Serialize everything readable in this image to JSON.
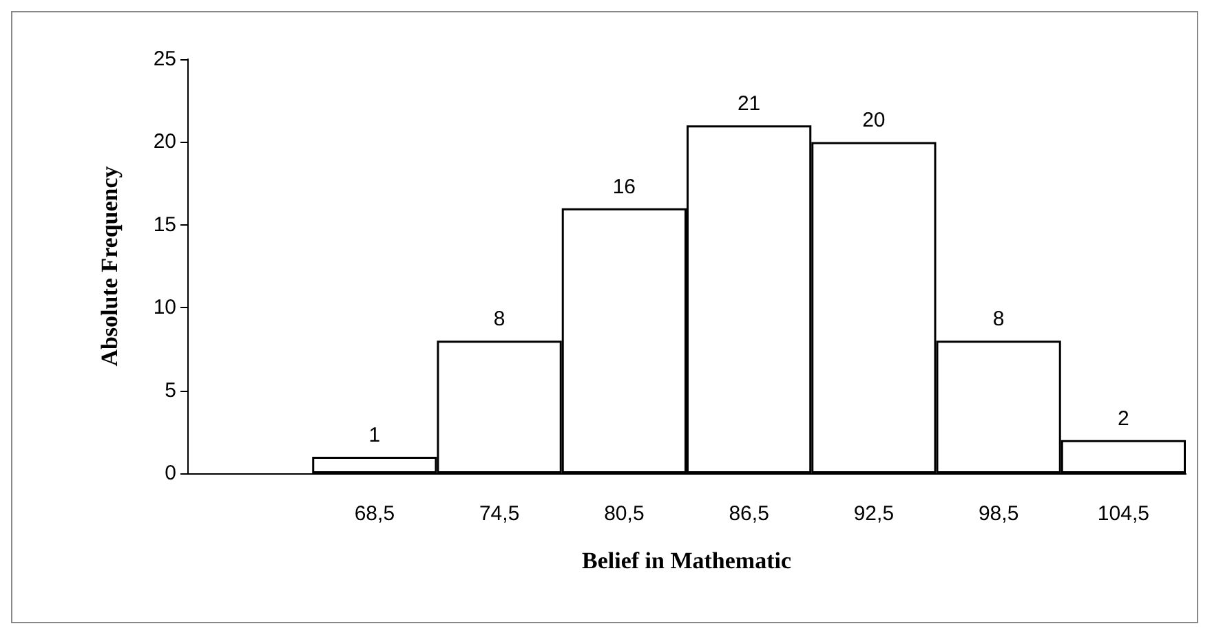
{
  "chart_data": {
    "type": "bar",
    "xlabel": "Belief in Mathematic",
    "ylabel": "Absolute Frequency",
    "categories": [
      null,
      "68,5",
      "74,5",
      "80,5",
      "86,5",
      "92,5",
      "98,5",
      "104,5"
    ],
    "values": [
      null,
      1,
      8,
      16,
      21,
      20,
      8,
      2
    ],
    "color": "#ffffff",
    "ylim": [
      0,
      25
    ],
    "yticks": [
      0,
      5,
      10,
      15,
      20,
      25
    ],
    "grid": false,
    "data_labels": true
  }
}
